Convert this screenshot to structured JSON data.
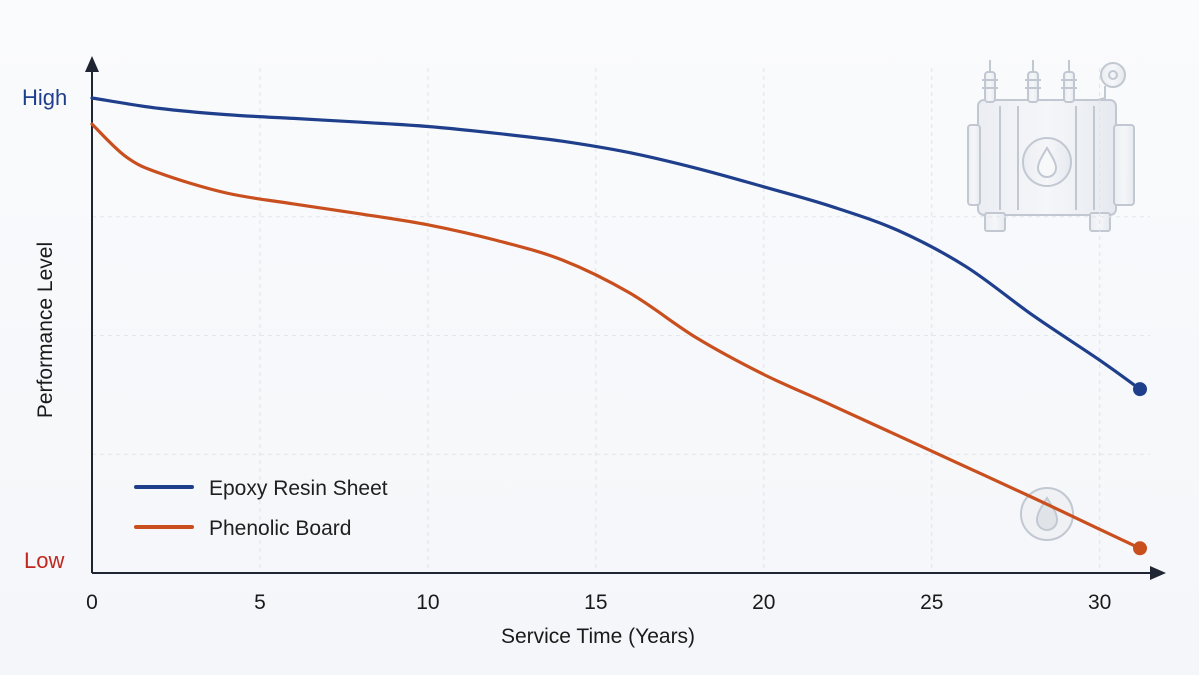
{
  "chart_data": {
    "type": "line",
    "xlabel": "Service Time (Years)",
    "ylabel": "Performance Level",
    "xlim": [
      0,
      31.2
    ],
    "ylim": [
      0,
      100
    ],
    "x_ticks": [
      0,
      5,
      10,
      15,
      20,
      25,
      30
    ],
    "y_ends": {
      "high": "High",
      "low": "Low"
    },
    "grid": true,
    "legend_position": "bottom-left",
    "series": [
      {
        "name": "Epoxy Resin Sheet",
        "color": "#1f3f8c",
        "x": [
          0,
          2,
          4,
          6,
          8,
          10,
          12,
          14,
          16,
          18,
          20,
          22,
          24,
          26,
          28,
          30,
          31.2
        ],
        "y": [
          100,
          97.8,
          96.5,
          95.7,
          94.9,
          94.0,
          92.6,
          90.9,
          88.5,
          85.2,
          81.3,
          77.2,
          72.1,
          64.6,
          54.3,
          44.8,
          38.7
        ],
        "end_marker": true
      },
      {
        "name": "Phenolic Board",
        "color": "#c94f1e",
        "x": [
          0,
          1,
          2,
          4,
          6,
          8,
          10,
          12,
          14,
          16,
          18,
          20,
          22,
          24,
          26,
          28,
          30,
          31.2
        ],
        "y": [
          94.5,
          87.7,
          84.2,
          80.0,
          77.7,
          75.6,
          73.3,
          70.1,
          65.9,
          59.0,
          49.5,
          41.8,
          35.4,
          28.9,
          22.4,
          15.9,
          9.2,
          5.2
        ],
        "end_marker": true
      }
    ],
    "decorations": [
      "transformer-icon",
      "oil-drop-icon"
    ]
  }
}
